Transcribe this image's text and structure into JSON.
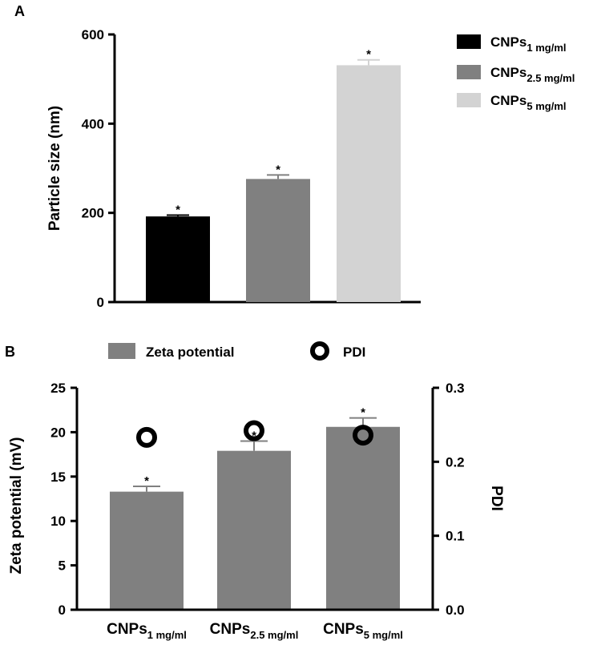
{
  "chart_data": [
    {
      "panel": "A",
      "type": "bar",
      "categories": [
        {
          "base": "CNPs",
          "sub": "1 mg/ml"
        },
        {
          "base": "CNPs",
          "sub": "2.5 mg/ml"
        },
        {
          "base": "CNPs",
          "sub": "5 mg/ml"
        }
      ],
      "values": [
        192,
        276,
        531
      ],
      "errors": [
        3,
        9,
        12
      ],
      "significance": [
        "*",
        "*",
        "*"
      ],
      "colors": [
        "#000000",
        "#808080",
        "#d3d3d3"
      ],
      "ylabel": "Particle size (nm)",
      "ylim": [
        0,
        600
      ],
      "yticks": [
        0,
        200,
        400,
        600
      ],
      "legend_position": "top-right",
      "grid": false
    },
    {
      "panel": "B",
      "type": "bar",
      "categories": [
        {
          "base": "CNPs",
          "sub": "1 mg/ml"
        },
        {
          "base": "CNPs",
          "sub": "2.5 mg/ml"
        },
        {
          "base": "CNPs",
          "sub": "5 mg/ml"
        }
      ],
      "series": [
        {
          "name": "Zeta potential",
          "kind": "bar",
          "axis": "left",
          "color": "#808080",
          "values": [
            13.3,
            17.9,
            20.6
          ],
          "errors": [
            0.6,
            1.1,
            1.0
          ],
          "significance": [
            "*",
            "*",
            "*"
          ]
        },
        {
          "name": "PDI",
          "kind": "scatter",
          "axis": "right",
          "marker": "open-circle",
          "values": [
            0.233,
            0.242,
            0.236
          ]
        }
      ],
      "ylabel": "Zeta potential (mV)",
      "ylim": [
        0,
        25
      ],
      "yticks": [
        0,
        5,
        10,
        15,
        20,
        25
      ],
      "y2label": "PDI",
      "y2lim": [
        0,
        0.3
      ],
      "y2ticks": [
        "0.0",
        "0.1",
        "0.2",
        "0.3"
      ],
      "legend_position": "top",
      "grid": false
    }
  ]
}
